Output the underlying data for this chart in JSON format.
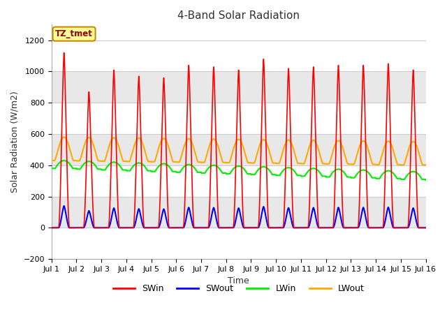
{
  "title": "4-Band Solar Radiation",
  "xlabel": "Time",
  "ylabel": "Solar Radiation (W/m2)",
  "ylim": [
    -200,
    1300
  ],
  "yticks": [
    -200,
    0,
    200,
    400,
    600,
    800,
    1000,
    1200
  ],
  "xlim": [
    0,
    15
  ],
  "xtick_labels": [
    "Jul 1",
    "Jul 2",
    "Jul 3",
    "Jul 4",
    "Jul 5",
    "Jul 6",
    "Jul 7",
    "Jul 8",
    "Jul 9",
    "Jul 10",
    "Jul 11",
    "Jul 12",
    "Jul 13",
    "Jul 14",
    "Jul 15",
    "Jul 16"
  ],
  "annotation_text": "TZ_tmet",
  "annotation_bg": "#ffff99",
  "annotation_border": "#cc8800",
  "colors": {
    "SWin": "#ff0000",
    "SWout": "#0000ff",
    "LWin": "#00ee00",
    "LWout": "#ffaa00"
  },
  "background_color": "#ffffff",
  "band_colors": [
    "#ffffff",
    "#e8e8e8",
    "#ffffff",
    "#e8e8e8",
    "#ffffff",
    "#e8e8e8",
    "#ffffff"
  ],
  "sw_peaks": [
    1120,
    870,
    1010,
    970,
    960,
    1040,
    1030,
    1010,
    1080,
    1020,
    1030,
    1040,
    1040,
    1050,
    1010
  ],
  "figsize": [
    6.4,
    4.8
  ],
  "dpi": 100
}
